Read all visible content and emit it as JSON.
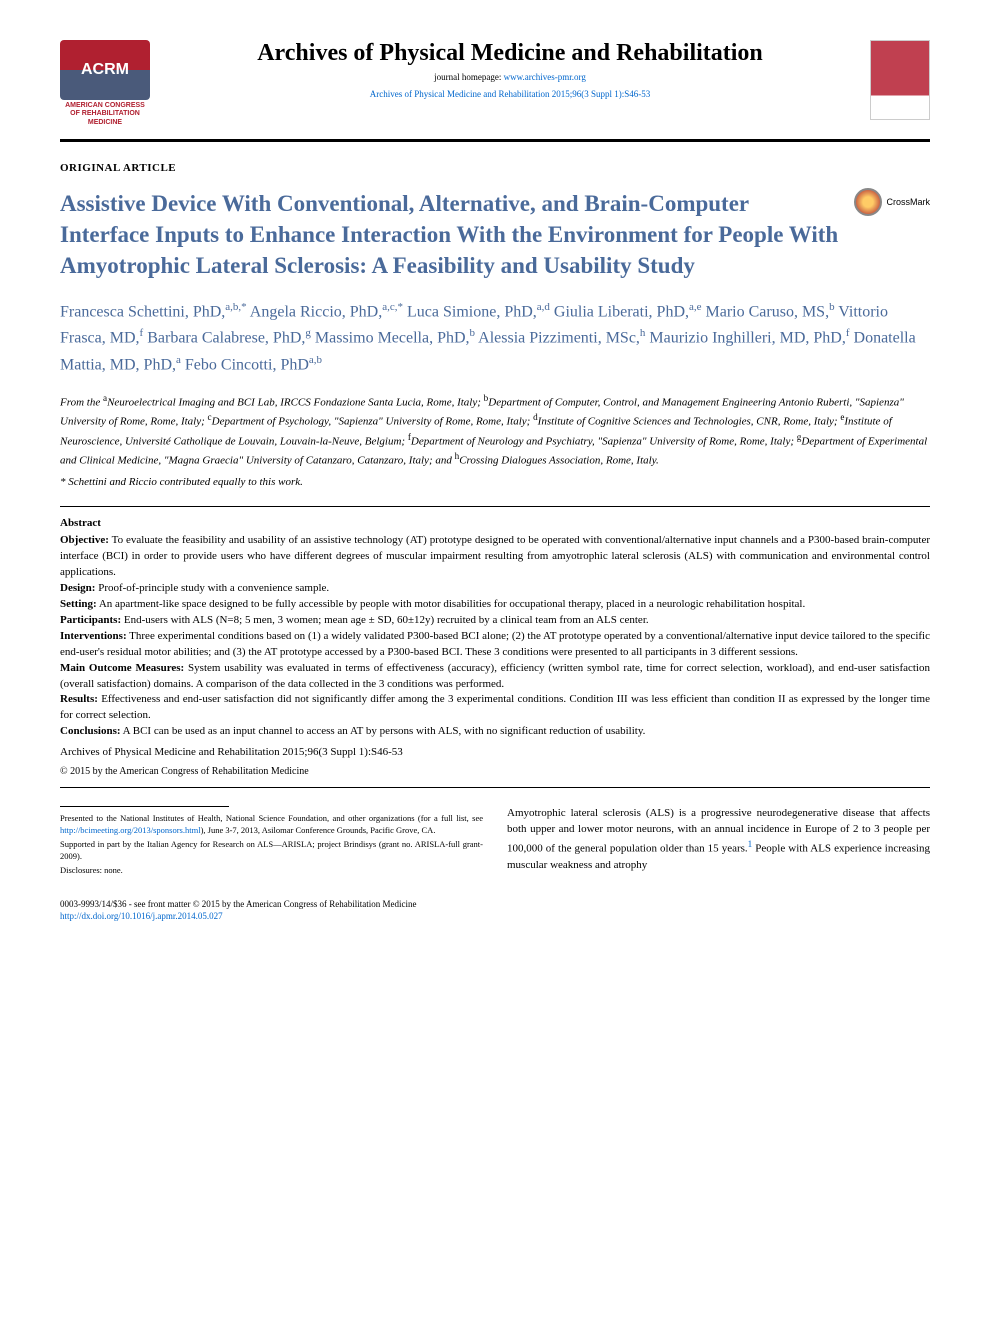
{
  "header": {
    "logo_text": "ACRM",
    "logo_subtitle": "AMERICAN CONGRESS OF\nREHABILITATION MEDICINE",
    "journal_title": "Archives of Physical Medicine and Rehabilitation",
    "homepage_label": "journal homepage: ",
    "homepage_url": "www.archives-pmr.org",
    "citation": "Archives of Physical Medicine and Rehabilitation 2015;96(3 Suppl 1):S46-53"
  },
  "article_type": "ORIGINAL ARTICLE",
  "crossmark": "CrossMark",
  "title": "Assistive Device With Conventional, Alternative, and Brain-Computer Interface Inputs to Enhance Interaction With the Environment for People With Amyotrophic Lateral Sclerosis: A Feasibility and Usability Study",
  "authors_html": "Francesca Schettini, PhD,<sup>a,b,*</sup> Angela Riccio, PhD,<sup>a,c,*</sup> Luca Simione, PhD,<sup>a,d</sup> Giulia Liberati, PhD,<sup>a,e</sup> Mario Caruso, MS,<sup>b</sup> Vittorio Frasca, MD,<sup>f</sup> Barbara Calabrese, PhD,<sup>g</sup> Massimo Mecella, PhD,<sup>b</sup> Alessia Pizzimenti, MSc,<sup>h</sup> Maurizio Inghilleri, MD, PhD,<sup>f</sup> Donatella Mattia, MD, PhD,<sup>a</sup> Febo Cincotti, PhD<sup>a,b</sup>",
  "affiliations_html": "From the <sup>a</sup>Neuroelectrical Imaging and BCI Lab, IRCCS Fondazione Santa Lucia, Rome, Italy; <sup>b</sup>Department of Computer, Control, and Management Engineering Antonio Ruberti, \"Sapienza\" University of Rome, Rome, Italy; <sup>c</sup>Department of Psychology, \"Sapienza\" University of Rome, Rome, Italy; <sup>d</sup>Institute of Cognitive Sciences and Technologies, CNR, Rome, Italy; <sup>e</sup>Institute of Neuroscience, Université Catholique de Louvain, Louvain-la-Neuve, Belgium; <sup>f</sup>Department of Neurology and Psychiatry, \"Sapienza\" University of Rome, Rome, Italy; <sup>g</sup>Department of Experimental and Clinical Medicine, \"Magna Graecia\" University of Catanzaro, Catanzaro, Italy; and <sup>h</sup>Crossing Dialogues Association, Rome, Italy.",
  "equal_contrib": "* Schettini and Riccio contributed equally to this work.",
  "abstract": {
    "heading": "Abstract",
    "sections": [
      {
        "label": "Objective:",
        "text": " To evaluate the feasibility and usability of an assistive technology (AT) prototype designed to be operated with conventional/alternative input channels and a P300-based brain-computer interface (BCI) in order to provide users who have different degrees of muscular impairment resulting from amyotrophic lateral sclerosis (ALS) with communication and environmental control applications."
      },
      {
        "label": "Design:",
        "text": " Proof-of-principle study with a convenience sample."
      },
      {
        "label": "Setting:",
        "text": " An apartment-like space designed to be fully accessible by people with motor disabilities for occupational therapy, placed in a neurologic rehabilitation hospital."
      },
      {
        "label": "Participants:",
        "text": " End-users with ALS (N=8; 5 men, 3 women; mean age ± SD, 60±12y) recruited by a clinical team from an ALS center."
      },
      {
        "label": "Interventions:",
        "text": " Three experimental conditions based on (1) a widely validated P300-based BCI alone; (2) the AT prototype operated by a conventional/alternative input device tailored to the specific end-user's residual motor abilities; and (3) the AT prototype accessed by a P300-based BCI. These 3 conditions were presented to all participants in 3 different sessions."
      },
      {
        "label": "Main Outcome Measures:",
        "text": " System usability was evaluated in terms of effectiveness (accuracy), efficiency (written symbol rate, time for correct selection, workload), and end-user satisfaction (overall satisfaction) domains. A comparison of the data collected in the 3 conditions was performed."
      },
      {
        "label": "Results:",
        "text": " Effectiveness and end-user satisfaction did not significantly differ among the 3 experimental conditions. Condition III was less efficient than condition II as expressed by the longer time for correct selection."
      },
      {
        "label": "Conclusions:",
        "text": " A BCI can be used as an input channel to access an AT by persons with ALS, with no significant reduction of usability."
      }
    ],
    "citation": "Archives of Physical Medicine and Rehabilitation 2015;96(3 Suppl 1):S46-53",
    "copyright": "© 2015 by the American Congress of Rehabilitation Medicine"
  },
  "footnotes": {
    "presented": "Presented to the National Institutes of Health, National Science Foundation, and other organizations (for a full list, see ",
    "presented_link": "http://bcimeeting.org/2013/sponsors.html",
    "presented_tail": "), June 3-7, 2013, Asilomar Conference Grounds, Pacific Grove, CA.",
    "supported": "Supported in part by the Italian Agency for Research on ALS—ARISLA; project Brindisys (grant no. ARISLA-full grant-2009).",
    "disclosures": "Disclosures: none."
  },
  "body": {
    "paragraph": "Amyotrophic lateral sclerosis (ALS) is a progressive neurodegenerative disease that affects both upper and lower motor neurons, with an annual incidence in Europe of 2 to 3 people per 100,000 of the general population older than 15 years.",
    "ref": "1",
    "paragraph_tail": " People with ALS experience increasing muscular weakness and atrophy"
  },
  "footer": {
    "line1": "0003-9993/14/$36 - see front matter © 2015 by the American Congress of Rehabilitation Medicine",
    "doi": "http://dx.doi.org/10.1016/j.apmr.2014.05.027"
  },
  "colors": {
    "title_blue": "#4a6a9a",
    "link_blue": "#0066cc",
    "acrm_red": "#b02030",
    "acrm_blue": "#4a5a7a"
  }
}
